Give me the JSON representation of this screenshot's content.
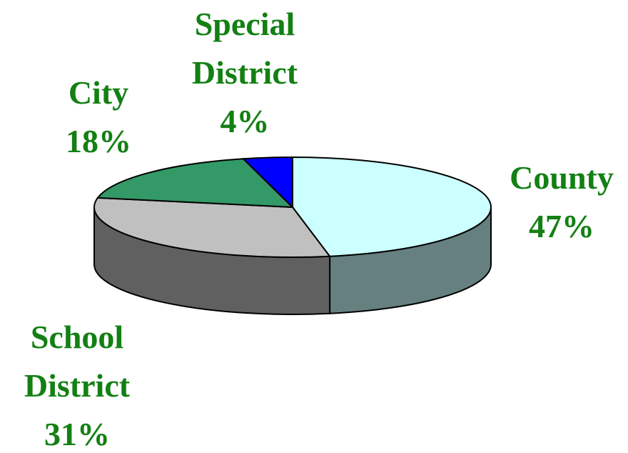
{
  "chart_data": {
    "type": "pie",
    "categories": [
      "County",
      "School District",
      "City",
      "Special District"
    ],
    "values": [
      47,
      31,
      18,
      4
    ],
    "value_labels": [
      "47%",
      "31%",
      "18%",
      "4%"
    ],
    "colors": [
      "#ccffff",
      "#c0c0c0",
      "#339966",
      "#0000ff"
    ],
    "side_colors": [
      "#668080",
      "#606060",
      "#1f5c3d",
      "#000099"
    ]
  }
}
